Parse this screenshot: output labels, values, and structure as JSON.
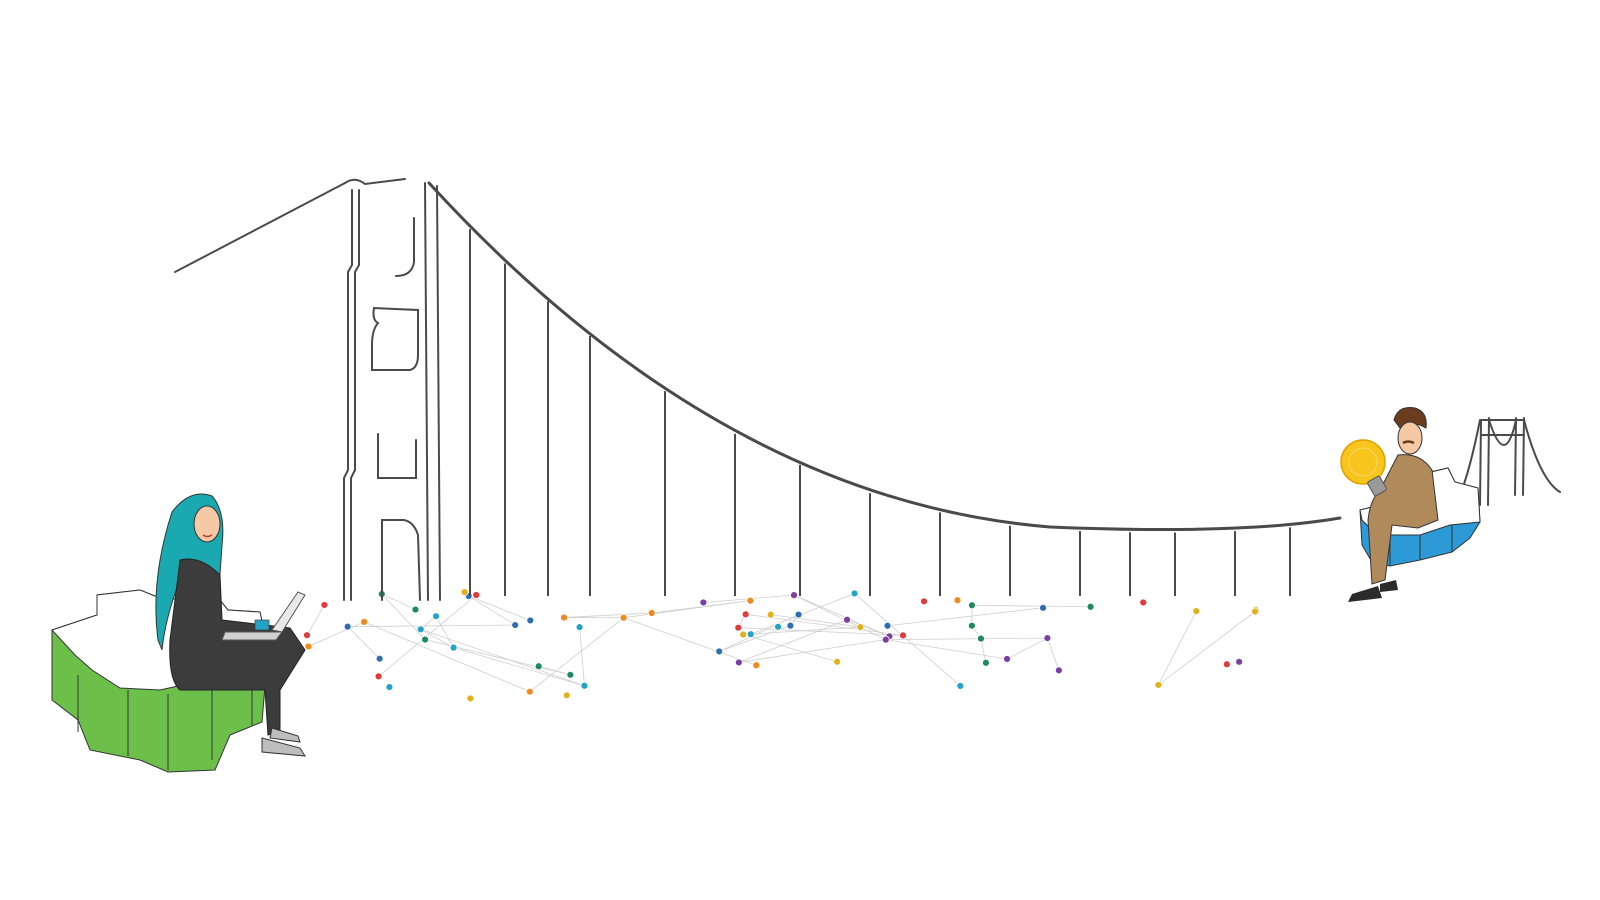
{
  "scene": {
    "description_free": true,
    "colors": {
      "gear_left": "#6cc04a",
      "gear_right": "#2b9ad6",
      "hijab": "#1aa9b0",
      "outfit_dark": "#3c3c3c",
      "man_suit": "#b08a5b",
      "man_hair": "#6b3d1e",
      "bulb": "#f8c51c",
      "line": "#4a4a4a",
      "node_palette": [
        "#2f6eb5",
        "#1e8a5a",
        "#e0b11c",
        "#e03a3a",
        "#7b3fa0",
        "#27a2c7",
        "#f08a1f"
      ]
    },
    "icons": [
      "gear-icon",
      "lightbulb-icon",
      "laptop-icon",
      "bridge-icon",
      "network-icon"
    ]
  }
}
